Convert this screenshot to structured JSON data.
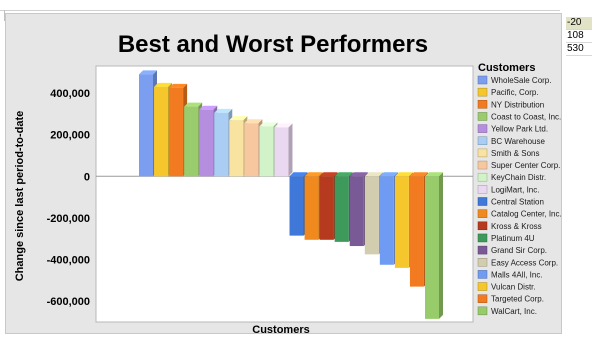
{
  "side_cells": [
    "-20",
    "108",
    "530"
  ],
  "chart_data": {
    "type": "bar",
    "title": "Best and Worst Performers",
    "xlabel": "Customers",
    "ylabel": "Change since last period-to-date",
    "legend_title": "Customers",
    "legend_position": "right",
    "grid": false,
    "ylim": [
      -700000,
      530000
    ],
    "yticks": [
      400000,
      200000,
      0,
      -200000,
      -400000,
      -600000
    ],
    "ytick_labels": [
      "400,000",
      "200,000",
      "0",
      "-200,000",
      "-400,000",
      "-600,000"
    ],
    "categories": [
      "WholeSale Corp.",
      "Pacific, Corp.",
      "NY Distribution",
      "Coast to Coast, Inc.",
      "Yellow Park Ltd.",
      "BC Warehouse",
      "Smith & Sons",
      "Super Center Corp.",
      "KeyChain Distr.",
      "LogiMart, Inc.",
      "Central Station",
      "Catalog Center, Inc.",
      "Kross & Kross",
      "Platinum 4U",
      "Grand Sir Corp.",
      "Easy Access Corp.",
      "Malls 4All, Inc.",
      "Vulcan Distr.",
      "Targeted Corp.",
      "WalCart, Inc."
    ],
    "values": [
      490000,
      430000,
      425000,
      335000,
      320000,
      305000,
      270000,
      255000,
      240000,
      235000,
      -285000,
      -305000,
      -305000,
      -315000,
      -335000,
      -375000,
      -425000,
      -440000,
      -530000,
      -685000
    ],
    "colors": [
      "#7b9ef0",
      "#f6c72c",
      "#f27b21",
      "#9acb6c",
      "#b58ee0",
      "#a9cdf3",
      "#f8e3a0",
      "#f7c8a0",
      "#d2f3c8",
      "#ead8f0",
      "#3f78d8",
      "#f08a1e",
      "#b53a1e",
      "#3d9a5a",
      "#7a5a96",
      "#d2cdae",
      "#6f9cf2",
      "#f6c72c",
      "#f27b21",
      "#98cc6a"
    ]
  }
}
